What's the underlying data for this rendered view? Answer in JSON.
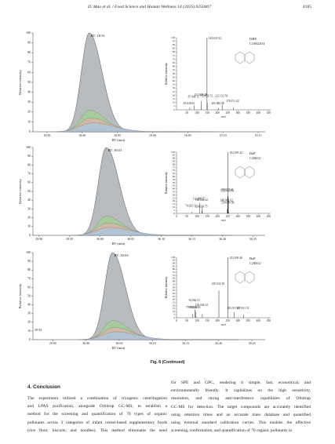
{
  "header": {
    "journal": "D. Mao et al. / Food Science and Human Wellness 14 (2025) 9250407",
    "page": "4185"
  },
  "figure": {
    "caption": "Fig. 8 (Continued)",
    "panels": [
      {
        "rt_label": "RT: 18.91",
        "peak_rt": 18.91,
        "xlim": [
          18.83,
          19.16
        ],
        "ylim": [
          0,
          100
        ],
        "xticks": [
          {
            "value": 18.85,
            "label": "18.85"
          },
          {
            "value": 18.9,
            "label": "18.90"
          },
          {
            "value": 18.95,
            "label": "18.95"
          },
          {
            "value": 19.0,
            "label": "19.00"
          },
          {
            "value": 19.05,
            "label": "19.05"
          },
          {
            "value": 19.1,
            "label": "19.10"
          },
          {
            "value": 19.15,
            "label": "19.15"
          }
        ],
        "yticks": [
          0,
          10,
          20,
          30,
          40,
          50,
          60,
          70,
          80,
          90,
          100
        ],
        "ylabel": "Relative intensity",
        "xlabel": "RT (min)",
        "ms": {
          "compound": "DBP",
          "formula": "C16H22O4",
          "xlabel": "m/z",
          "ylabel": "Relative intensity",
          "xlim": [
            0,
            460
          ],
          "ylim": [
            0,
            100
          ],
          "xticks": [
            50,
            100,
            150,
            200,
            250,
            300,
            350,
            400,
            450
          ],
          "yticks": [
            0,
            5,
            10,
            15,
            20,
            25,
            30,
            35,
            40,
            45,
            50,
            55,
            60,
            65,
            70,
            75,
            80,
            85,
            90,
            95,
            100
          ],
          "peaks": [
            {
              "mz": 149.02332,
              "intensity": 100,
              "label": "149.023 32"
            },
            {
              "mz": 121.02849,
              "intensity": 12,
              "label": "121.028 49"
            },
            {
              "mz": 87.04411,
              "intensity": 6,
              "label": "87.044 11"
            },
            {
              "mz": 65.03863,
              "intensity": 3,
              "label": "65.038 63"
            },
            {
              "mz": 150.02672,
              "intensity": 10,
              "label": "150.026 72"
            },
            {
              "mz": 223.13359,
              "intensity": 7,
              "label": "223.133 59"
            },
            {
              "mz": 205.08598,
              "intensity": 3,
              "label": "205.085 98"
            },
            {
              "mz": 278.15142,
              "intensity": 3,
              "label": "278.151 42"
            }
          ]
        }
      },
      {
        "rt_label": "RT: 30.01",
        "peak_rt": 30.01,
        "xlim": [
          29.89,
          30.27
        ],
        "ylim": [
          0,
          100
        ],
        "xticks": [
          {
            "value": 29.9,
            "label": "29.90"
          },
          {
            "value": 29.95,
            "label": "29.95"
          },
          {
            "value": 30.0,
            "label": "30.00"
          },
          {
            "value": 30.05,
            "label": "30.05"
          },
          {
            "value": 30.1,
            "label": "30.10"
          },
          {
            "value": 30.15,
            "label": "30.15"
          },
          {
            "value": 30.2,
            "label": "30.20"
          },
          {
            "value": 30.25,
            "label": "30.25"
          }
        ],
        "yticks": [
          0,
          10,
          20,
          30,
          40,
          50,
          60,
          70,
          80,
          90,
          100
        ],
        "ylabel": "Relative intensity",
        "xlabel": "RT (min)",
        "ms": {
          "compound": "BaP",
          "formula": "C20H12",
          "xlabel": "m/z",
          "ylabel": "Relative intensity",
          "xlim": [
            0,
            460
          ],
          "ylim": [
            0,
            100
          ],
          "xticks": [
            0,
            50,
            100,
            150,
            200,
            250,
            300,
            350,
            400,
            450
          ],
          "yticks": [
            0,
            5,
            10,
            15,
            20,
            25,
            30,
            35,
            40,
            45,
            50,
            55,
            60,
            65,
            70,
            75,
            80,
            85,
            90,
            95,
            100
          ],
          "peaks": [
            {
              "mz": 252.09322,
              "intensity": 100,
              "label": "252.093 22"
            },
            {
              "mz": 250.07764,
              "intensity": 28,
              "label": "250.077 64"
            },
            {
              "mz": 253.09663,
              "intensity": 22,
              "label": "253.096 63"
            },
            {
              "mz": 113.08857,
              "intensity": 17,
              "label": "113.088 57"
            },
            {
              "mz": 126.04642,
              "intensity": 11,
              "label": "126.046 42"
            },
            {
              "mz": 248.06262,
              "intensity": 7,
              "label": "248.062 62"
            },
            {
              "mz": 124.03075,
              "intensity": 4,
              "label": "124.030 75"
            },
            {
              "mz": 74.02513,
              "intensity": 2,
              "label": "74.025 13"
            },
            {
              "mz": 254.09996,
              "intensity": 3,
              "label": "254.099 96"
            }
          ]
        }
      },
      {
        "rt_label": "RT: 30.04",
        "peak_rt": 30.04,
        "start_label": "29.94",
        "xlim": [
          29.92,
          30.27
        ],
        "ylim": [
          0,
          100
        ],
        "xticks": [
          {
            "value": 29.95,
            "label": "29.95"
          },
          {
            "value": 30.0,
            "label": "30.00"
          },
          {
            "value": 30.05,
            "label": "30.05"
          },
          {
            "value": 30.1,
            "label": "30.10"
          },
          {
            "value": 30.15,
            "label": "30.15"
          },
          {
            "value": 30.2,
            "label": "30.20"
          },
          {
            "value": 30.25,
            "label": "30.25"
          }
        ],
        "yticks": [
          0,
          10,
          20,
          30,
          40,
          50,
          60,
          70,
          80,
          90,
          100
        ],
        "ylabel": "Relative intensity",
        "xlabel": "RT (min)",
        "ms": {
          "compound": "BaP",
          "formula": "C20H12",
          "xlabel": "m/z",
          "ylabel": "Relative intensity",
          "xlim": [
            0,
            460
          ],
          "ylim": [
            0,
            100
          ],
          "xticks": [
            0,
            50,
            100,
            150,
            200,
            250,
            300,
            350,
            400,
            450
          ],
          "yticks": [
            0,
            5,
            10,
            15,
            20,
            25,
            30,
            35,
            40,
            45,
            50,
            55,
            60,
            65,
            70,
            75,
            80,
            85,
            90,
            95,
            100
          ],
          "peaks": [
            {
              "mz": 252.09346,
              "intensity": 100,
              "label": "252.093 46"
            },
            {
              "mz": 207.03239,
              "intensity": 45,
              "label": "207.032 39"
            },
            {
              "mz": 91.06451,
              "intensity": 14,
              "label": "91.064 51"
            },
            {
              "mz": 93.03865,
              "intensity": 10,
              "label": "93.038 65"
            },
            {
              "mz": 79.05431,
              "intensity": 6,
              "label": "79.054 31"
            },
            {
              "mz": 126.04652,
              "intensity": 6,
              "label": "126.046 52"
            },
            {
              "mz": 281.0513,
              "intensity": 9,
              "label": "281.051 30"
            },
            {
              "mz": 327.03152,
              "intensity": 5,
              "label": "327.031 52"
            }
          ]
        }
      }
    ]
  },
  "section": {
    "heading": "4. Conclusion",
    "left_lines": [
      "The experiment utilized a combination of cryogenic centrifugation",
      "and LPAS purification, alongside Orbitrap GC-MS, to establish a",
      "method for the screening and quantification of 70 types of organic",
      "pollutants across 3 categories of infant cereal-based supplementary foods",
      "(rice flour, biscuits, and noodles). This method eliminates the need"
    ],
    "right_lines": [
      "for SPE and GPC, rendering it simple, fast, economical, and",
      "environmentally friendly. It capitalizes on the high sensitivity,",
      "resolution, and strong anti-interference capabilities of Orbitrap",
      "GC-MS for detection. The target compounds are accurately identified",
      "using retention times and an accurate mass database and quantified",
      "using external standard calibration curves. This enables the effective",
      "screening, confirmation, and quantification of 70 organic pollutants in"
    ]
  }
}
